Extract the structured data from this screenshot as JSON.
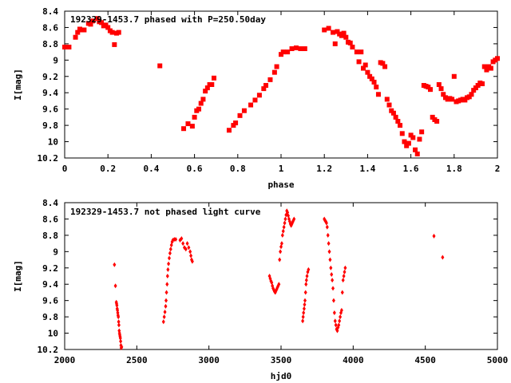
{
  "chart_data": [
    {
      "type": "scatter",
      "title": "192329-1453.7 phased with P=250.50day",
      "xlabel": "phase",
      "ylabel": "I[mag]",
      "xlim": [
        0,
        2
      ],
      "ylim": [
        8.4,
        10.2
      ],
      "y_inverted": true,
      "grid": false,
      "legend": "none",
      "marker_color": "#ff0000",
      "xticks": [
        "0",
        "0.2",
        "0.4",
        "0.6",
        "0.8",
        "1",
        "1.2",
        "1.4",
        "1.6",
        "1.8",
        "2"
      ],
      "yticks": [
        "8.4",
        "8.6",
        "8.8",
        "9",
        "9.2",
        "9.4",
        "9.6",
        "9.8",
        "10",
        "10.2"
      ],
      "x": [
        0.0,
        0.02,
        0.05,
        0.06,
        0.07,
        0.08,
        0.09,
        0.11,
        0.12,
        0.13,
        0.15,
        0.16,
        0.17,
        0.18,
        0.19,
        0.2,
        0.21,
        0.22,
        0.23,
        0.24,
        0.25,
        0.44,
        0.55,
        0.57,
        0.59,
        0.6,
        0.61,
        0.62,
        0.63,
        0.64,
        0.65,
        0.66,
        0.67,
        0.68,
        0.69,
        0.76,
        0.78,
        0.79,
        0.81,
        0.83,
        0.86,
        0.88,
        0.9,
        0.92,
        0.93,
        0.95,
        0.97,
        0.98,
        1.0,
        1.01,
        1.03,
        1.05,
        1.07,
        1.09,
        1.11,
        1.2,
        1.22,
        1.24,
        1.25,
        1.26,
        1.27,
        1.28,
        1.29,
        1.3,
        1.31,
        1.32,
        1.33,
        1.35,
        1.36,
        1.37,
        1.38,
        1.39,
        1.4,
        1.41,
        1.42,
        1.43,
        1.44,
        1.45,
        1.46,
        1.47,
        1.48,
        1.49,
        1.5,
        1.51,
        1.52,
        1.53,
        1.54,
        1.55,
        1.56,
        1.57,
        1.58,
        1.59,
        1.6,
        1.61,
        1.62,
        1.63,
        1.64,
        1.65,
        1.66,
        1.67,
        1.68,
        1.69,
        1.7,
        1.71,
        1.72,
        1.73,
        1.74,
        1.75,
        1.76,
        1.77,
        1.78,
        1.79,
        1.8,
        1.81,
        1.82,
        1.83,
        1.84,
        1.85,
        1.86,
        1.87,
        1.88,
        1.89,
        1.9,
        1.91,
        1.92,
        1.93,
        1.94,
        1.95,
        1.96,
        1.97,
        1.98,
        1.99,
        2.0
      ],
      "y": [
        8.84,
        8.84,
        8.72,
        8.66,
        8.62,
        8.63,
        8.63,
        8.55,
        8.56,
        8.52,
        8.49,
        8.53,
        8.54,
        8.58,
        8.57,
        8.6,
        8.64,
        8.66,
        8.81,
        8.67,
        8.66,
        9.07,
        9.84,
        9.78,
        9.81,
        9.7,
        9.62,
        9.6,
        9.53,
        9.48,
        9.38,
        9.34,
        9.3,
        9.3,
        9.22,
        9.86,
        9.8,
        9.77,
        9.68,
        9.62,
        9.55,
        9.49,
        9.43,
        9.35,
        9.31,
        9.24,
        9.15,
        9.08,
        8.93,
        8.9,
        8.9,
        8.86,
        8.85,
        8.86,
        8.86,
        8.63,
        8.61,
        8.66,
        8.8,
        8.65,
        8.68,
        8.7,
        8.67,
        8.72,
        8.78,
        8.79,
        8.84,
        8.9,
        9.02,
        8.9,
        9.1,
        9.06,
        9.15,
        9.2,
        9.23,
        9.27,
        9.33,
        9.42,
        9.03,
        9.04,
        9.08,
        9.48,
        9.55,
        9.62,
        9.65,
        9.7,
        9.75,
        9.8,
        9.9,
        10.0,
        10.05,
        10.02,
        9.92,
        9.95,
        10.1,
        10.15,
        9.97,
        9.88,
        9.31,
        9.32,
        9.33,
        9.36,
        9.7,
        9.73,
        9.75,
        9.3,
        9.35,
        9.42,
        9.46,
        9.48,
        9.47,
        9.48,
        9.2,
        9.51,
        9.5,
        9.49,
        9.48,
        9.49,
        9.46,
        9.45,
        9.42,
        9.37,
        9.34,
        9.31,
        9.28,
        9.29,
        9.08,
        9.12,
        9.08,
        9.1,
        9.02,
        9.0,
        8.98
      ]
    },
    {
      "type": "scatter",
      "title": "192329-1453.7 not phased light curve",
      "xlabel": "hjd0",
      "ylabel": "I[mag]",
      "xlim": [
        2000,
        5000
      ],
      "ylim": [
        8.4,
        10.2
      ],
      "y_inverted": true,
      "grid": false,
      "legend": "none",
      "marker_color": "#ff0000",
      "xticks": [
        "2000",
        "2500",
        "3000",
        "3500",
        "4000",
        "4500",
        "5000"
      ],
      "yticks": [
        "8.4",
        "8.6",
        "8.8",
        "9",
        "9.2",
        "9.4",
        "9.6",
        "9.8",
        "10",
        "10.2"
      ],
      "x": [
        2345,
        2352,
        2358,
        2360,
        2362,
        2364,
        2366,
        2368,
        2370,
        2372,
        2374,
        2376,
        2378,
        2380,
        2382,
        2384,
        2386,
        2388,
        2390,
        2392,
        2395,
        2685,
        2690,
        2695,
        2700,
        2703,
        2706,
        2710,
        2713,
        2716,
        2720,
        2725,
        2730,
        2735,
        2740,
        2745,
        2750,
        2760,
        2770,
        2800,
        2810,
        2820,
        2830,
        2840,
        2850,
        2860,
        2870,
        2875,
        2880,
        2885,
        3420,
        3425,
        3430,
        3435,
        3440,
        3445,
        3450,
        3455,
        3460,
        3465,
        3470,
        3475,
        3480,
        3485,
        3490,
        3495,
        3500,
        3505,
        3510,
        3515,
        3520,
        3525,
        3530,
        3535,
        3540,
        3545,
        3550,
        3555,
        3560,
        3565,
        3570,
        3575,
        3580,
        3585,
        3590,
        3650,
        3653,
        3656,
        3660,
        3663,
        3666,
        3670,
        3673,
        3676,
        3680,
        3685,
        3690,
        3800,
        3805,
        3810,
        3815,
        3820,
        3825,
        3830,
        3835,
        3840,
        3845,
        3850,
        3855,
        3860,
        3865,
        3870,
        3875,
        3880,
        3885,
        3890,
        3895,
        3900,
        3905,
        3910,
        3915,
        3920,
        3925,
        3930,
        3935,
        3940,
        3945,
        4560,
        4620
      ],
      "y": [
        9.16,
        9.42,
        9.62,
        9.64,
        9.66,
        9.7,
        9.72,
        9.75,
        9.78,
        9.8,
        9.86,
        9.9,
        9.97,
        10.0,
        10.02,
        10.04,
        10.06,
        10.1,
        10.15,
        10.18,
        10.17,
        9.86,
        9.8,
        9.74,
        9.67,
        9.6,
        9.5,
        9.4,
        9.3,
        9.22,
        9.15,
        9.08,
        9.02,
        8.97,
        8.92,
        8.88,
        8.86,
        8.85,
        8.85,
        8.86,
        8.84,
        8.9,
        8.95,
        8.97,
        8.9,
        8.95,
        9.0,
        9.05,
        9.1,
        9.12,
        9.3,
        9.33,
        9.36,
        9.38,
        9.42,
        9.45,
        9.47,
        9.49,
        9.5,
        9.48,
        9.46,
        9.44,
        9.42,
        9.4,
        9.1,
        9.0,
        8.94,
        8.9,
        8.8,
        8.75,
        8.7,
        8.65,
        8.6,
        8.55,
        8.5,
        8.52,
        8.56,
        8.6,
        8.63,
        8.66,
        8.68,
        8.66,
        8.64,
        8.62,
        8.6,
        9.85,
        9.8,
        9.75,
        9.7,
        9.65,
        9.6,
        9.5,
        9.4,
        9.35,
        9.3,
        9.25,
        9.22,
        8.6,
        8.62,
        8.63,
        8.65,
        8.7,
        8.8,
        8.9,
        9.0,
        9.1,
        9.2,
        9.28,
        9.35,
        9.45,
        9.6,
        9.75,
        9.85,
        9.9,
        9.95,
        9.97,
        9.93,
        9.9,
        9.85,
        9.8,
        9.75,
        9.72,
        9.5,
        9.35,
        9.3,
        9.25,
        9.2,
        8.81,
        9.07
      ]
    }
  ]
}
